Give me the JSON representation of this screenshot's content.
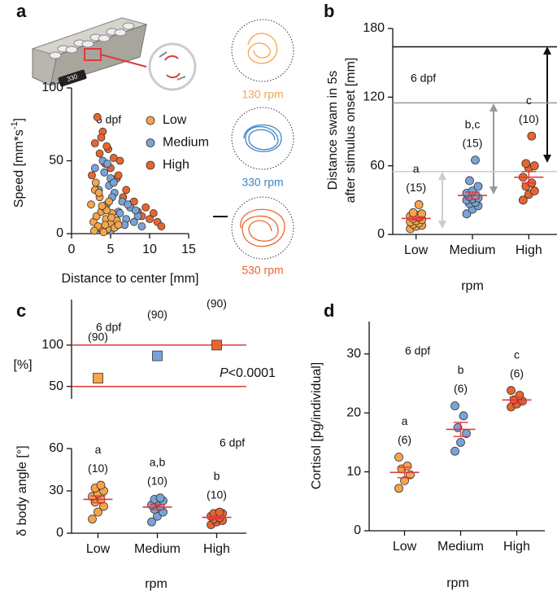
{
  "chart_data": [
    {
      "type": "scatter",
      "panel": "a",
      "note": "6 dpf",
      "ylabel": "Speed [mm*s",
      "ylabel_sup": "-1",
      "ylabel_end": "]",
      "xlabel": "Distance to center [mm]",
      "xlim": [
        0,
        15
      ],
      "xticks": [
        0,
        5,
        10,
        15
      ],
      "ylim": [
        0,
        100
      ],
      "yticks": [
        0,
        50,
        100
      ],
      "device_display": "330",
      "annotations": [
        "130 rpm",
        "330 rpm",
        "530 rpm"
      ],
      "series": [
        {
          "name": "Low",
          "color": "#f5a54a",
          "x": [
            2.5,
            2.8,
            3,
            3.2,
            3.4,
            3.6,
            3.8,
            4,
            4.2,
            4.4,
            4.6,
            4.8,
            5,
            5.2,
            5.5,
            5.8,
            6,
            3.1,
            3.5,
            4.1,
            4.5,
            5.1,
            2.9,
            3.9,
            4.3
          ],
          "values": [
            20,
            8,
            30,
            12,
            5,
            25,
            15,
            2,
            18,
            10,
            3,
            22,
            7,
            14,
            4,
            9,
            6,
            35,
            28,
            1,
            16,
            11,
            2,
            19,
            6
          ]
        },
        {
          "name": "Medium",
          "color": "#7aa3d6",
          "x": [
            3,
            3.5,
            4,
            4.5,
            5,
            5.5,
            6,
            6.5,
            7,
            7.5,
            8,
            8.5,
            9,
            4.2,
            4.8,
            5.2,
            5.8,
            6.2,
            3.8,
            7.2,
            4.6,
            5.4,
            6.8,
            8.2,
            5
          ],
          "values": [
            45,
            30,
            50,
            20,
            38,
            28,
            15,
            22,
            10,
            18,
            8,
            12,
            5,
            42,
            33,
            25,
            9,
            14,
            3,
            20,
            48,
            35,
            6,
            16,
            2
          ]
        },
        {
          "name": "High",
          "color": "#e9652e",
          "x": [
            2.6,
            3,
            3.3,
            3.6,
            4,
            4.3,
            4.7,
            5,
            5.4,
            5.8,
            6.2,
            6.6,
            7,
            7.5,
            8,
            8.5,
            9,
            9.5,
            10,
            10.5,
            11,
            11.5,
            3.8,
            4.5,
            6
          ],
          "values": [
            40,
            62,
            80,
            55,
            70,
            48,
            58,
            45,
            52,
            38,
            50,
            25,
            30,
            20,
            22,
            15,
            12,
            18,
            10,
            14,
            8,
            5,
            66,
            60,
            40
          ]
        }
      ]
    },
    {
      "type": "strip",
      "panel": "b",
      "note": "6 dpf",
      "ylabel": [
        "Distance swam in 5s",
        "after stimulus onset [mm]"
      ],
      "xlabel": "rpm",
      "ylim": [
        0,
        180
      ],
      "yticks": [
        0,
        60,
        120,
        180
      ],
      "hlines": [
        {
          "value": 164,
          "color": "#111111"
        },
        {
          "value": 115,
          "color": "#999999"
        },
        {
          "value": 55,
          "color": "#cccccc"
        }
      ],
      "categories": [
        "Low",
        "Medium",
        "High"
      ],
      "groups": [
        {
          "color": "#f5a54a",
          "letter": "a",
          "n": "(15)",
          "values": [
            5,
            7,
            8,
            9,
            10,
            11,
            12,
            13,
            14,
            15,
            16,
            17,
            18,
            19,
            26
          ],
          "mean": 14,
          "sem": 1.4
        },
        {
          "color": "#7aa3d6",
          "letter": "b,c",
          "n": "(15)",
          "values": [
            18,
            22,
            25,
            27,
            28,
            30,
            31,
            32,
            33,
            34,
            36,
            38,
            42,
            47,
            65
          ],
          "mean": 34,
          "sem": 3
        },
        {
          "color": "#e9652e",
          "letter": "c",
          "n": "(10)",
          "values": [
            30,
            35,
            38,
            42,
            45,
            50,
            58,
            60,
            62,
            86
          ],
          "mean": 50,
          "sem": 5
        }
      ]
    },
    {
      "type": "square",
      "panel": "c",
      "note": "6 dpf",
      "ylabel": "[%]",
      "p_label": "P",
      "p_text": "<0.0001",
      "ylim": [
        35,
        155
      ],
      "yticks": [
        50,
        100
      ],
      "hlines": [
        {
          "value": 50,
          "color": "#e0393b"
        },
        {
          "value": 100,
          "color": "#e0393b"
        }
      ],
      "values": [
        60,
        87,
        100
      ],
      "colors": [
        "#f5a54a",
        "#7aa3d6",
        "#e9652e"
      ],
      "n_labels": [
        "(90)",
        "(90)",
        "(90)"
      ]
    },
    {
      "type": "strip",
      "note": "6 dpf",
      "ylabel": "δ body angle [°]",
      "xlabel": "rpm",
      "ylim": [
        0,
        60
      ],
      "yticks": [
        0,
        30,
        60
      ],
      "categories": [
        "Low",
        "Medium",
        "High"
      ],
      "groups": [
        {
          "color": "#f5a54a",
          "letter": "a",
          "n": "(10)",
          "values": [
            10,
            15,
            19,
            22,
            24,
            26,
            28,
            30,
            32,
            34
          ],
          "mean": 24,
          "sem": 2.4
        },
        {
          "color": "#7aa3d6",
          "letter": "a,b",
          "n": "(10)",
          "values": [
            8,
            12,
            15,
            17,
            19,
            20,
            22,
            23,
            24,
            25
          ],
          "mean": 18.5,
          "sem": 1.8
        },
        {
          "color": "#e9652e",
          "letter": "b",
          "n": "(10)",
          "values": [
            6,
            8,
            9,
            10,
            11,
            12,
            13,
            14,
            14,
            15
          ],
          "mean": 11.2,
          "sem": 1
        }
      ]
    },
    {
      "type": "strip",
      "panel": "d",
      "note": "6 dpf",
      "ylabel": "Cortisol [pg/individual]",
      "xlabel": "rpm",
      "ylim": [
        0,
        35.5
      ],
      "yticks": [
        0,
        10,
        20,
        30
      ],
      "categories": [
        "Low",
        "Medium",
        "High"
      ],
      "groups": [
        {
          "color": "#f5a54a",
          "letter": "a",
          "n": "(6)",
          "values": [
            7.2,
            8.5,
            9.5,
            10.5,
            11,
            12.5
          ],
          "mean": 9.9,
          "sem": 0.9
        },
        {
          "color": "#7aa3d6",
          "letter": "b",
          "n": "(6)",
          "values": [
            13.5,
            15,
            16.5,
            17.5,
            19.5,
            21.2
          ],
          "mean": 17.2,
          "sem": 1.2
        },
        {
          "color": "#e9652e",
          "letter": "c",
          "n": "(6)",
          "values": [
            21,
            21.5,
            22,
            22.2,
            23,
            23.8
          ],
          "mean": 22.2,
          "sem": 0.5
        }
      ]
    }
  ]
}
